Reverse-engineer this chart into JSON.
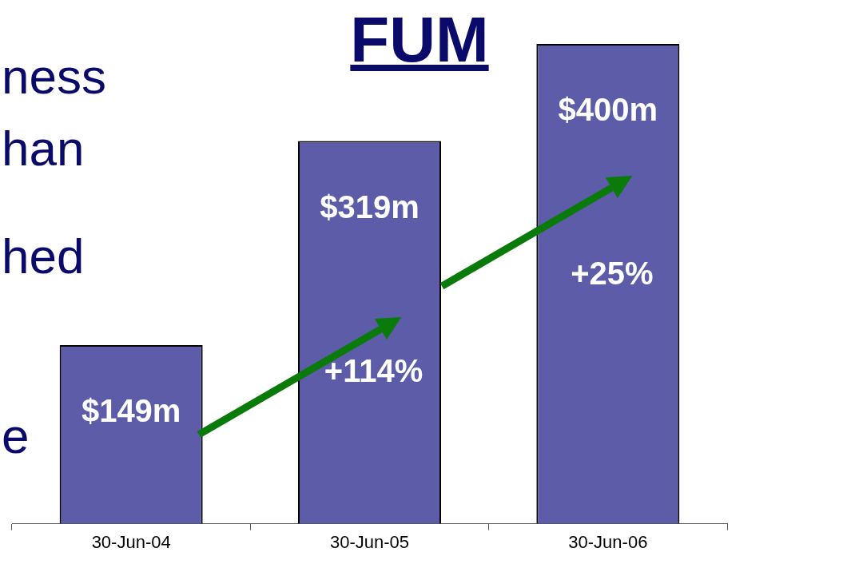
{
  "chart_data": {
    "type": "bar",
    "title": "FUM",
    "categories": [
      "30-Jun-04",
      "30-Jun-05",
      "30-Jun-06"
    ],
    "values": [
      149,
      319,
      400
    ],
    "value_labels": [
      "$149m",
      "$319m",
      "$400m"
    ],
    "color": "#5c5ca8",
    "annotations": [
      "+114%",
      "+25%",
      "ness",
      "han",
      "hed",
      "e"
    ],
    "legend": false,
    "grid": false
  }
}
